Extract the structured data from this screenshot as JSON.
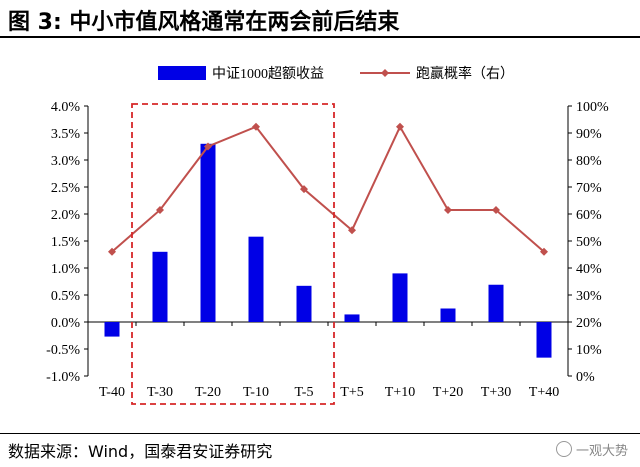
{
  "title": "图 3: 中小市值风格通常在两会前后结束",
  "source": "数据来源：Wind，国泰君安证券研究",
  "watermark": "一观大势",
  "colors": {
    "bar": "#0000e6",
    "line": "#c0504d",
    "box": "#d62728"
  },
  "chart_data": {
    "type": "bar+line",
    "categories": [
      "T-40",
      "T-30",
      "T-20",
      "T-10",
      "T-5",
      "T+5",
      "T+10",
      "T+20",
      "T+30",
      "T+40"
    ],
    "series": [
      {
        "name": "中证1000超额收益",
        "type": "bar",
        "axis": "left",
        "values": [
          -0.27,
          1.3,
          3.3,
          1.58,
          0.67,
          0.14,
          0.9,
          0.25,
          0.69,
          -0.66
        ]
      },
      {
        "name": "跑赢概率（右）",
        "type": "line",
        "axis": "right",
        "values": [
          46,
          61.5,
          85,
          92.3,
          69.2,
          54,
          92.3,
          61.5,
          61.5,
          46
        ]
      }
    ],
    "left_axis": {
      "min": -1.0,
      "max": 4.0,
      "step": 0.5,
      "ticks": [
        "-1.0%",
        "-0.5%",
        "0.0%",
        "0.5%",
        "1.0%",
        "1.5%",
        "2.0%",
        "2.5%",
        "3.0%",
        "3.5%",
        "4.0%"
      ]
    },
    "right_axis": {
      "min": 0,
      "max": 100,
      "step": 10,
      "ticks": [
        "0%",
        "10%",
        "20%",
        "30%",
        "40%",
        "50%",
        "60%",
        "70%",
        "80%",
        "90%",
        "100%"
      ]
    },
    "highlight_box": {
      "from": "T-30",
      "to": "T-5",
      "style": "dashed"
    },
    "legend": "top",
    "grid": false
  }
}
